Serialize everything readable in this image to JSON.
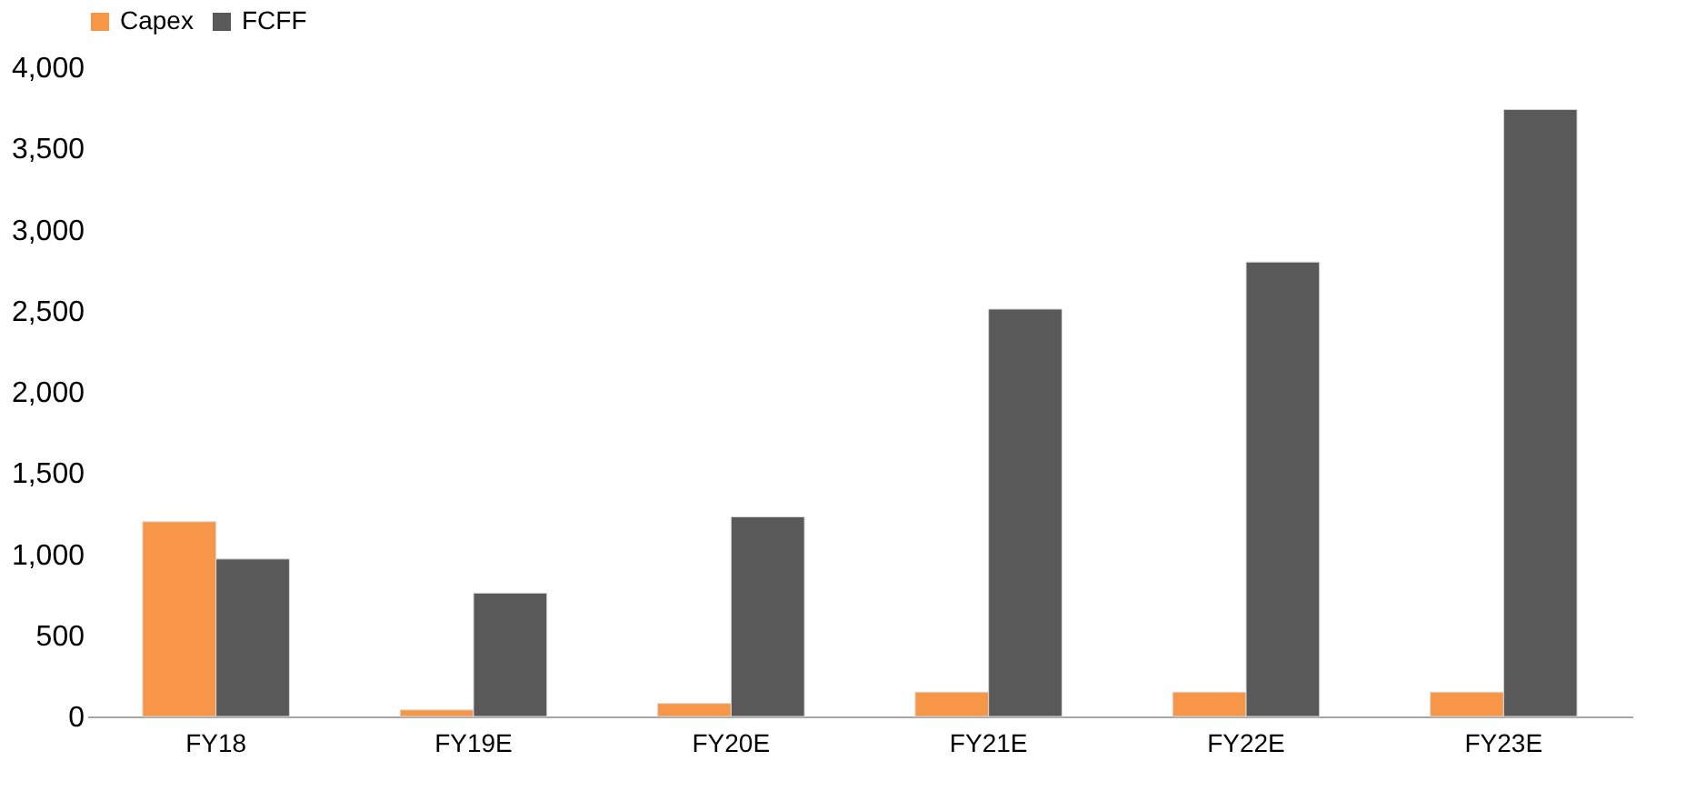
{
  "chart_data": {
    "type": "bar",
    "categories": [
      "FY18",
      "FY19E",
      "FY20E",
      "FY21E",
      "FY22E",
      "FY23E"
    ],
    "series": [
      {
        "name": "Capex",
        "color": "#f79646",
        "values": [
          1200,
          40,
          80,
          150,
          150,
          150
        ]
      },
      {
        "name": "FCFF",
        "color": "#595959",
        "values": [
          970,
          760,
          1230,
          2510,
          2800,
          3740
        ]
      }
    ],
    "ylim": [
      0,
      4000
    ],
    "yticks": [
      {
        "value": 0,
        "label": "0"
      },
      {
        "value": 500,
        "label": "500"
      },
      {
        "value": 1000,
        "label": "1,000"
      },
      {
        "value": 1500,
        "label": "1,500"
      },
      {
        "value": 2000,
        "label": "2,000"
      },
      {
        "value": 2500,
        "label": "2,500"
      },
      {
        "value": 3000,
        "label": "3,000"
      },
      {
        "value": 3500,
        "label": "3,500"
      },
      {
        "value": 4000,
        "label": "4,000"
      }
    ],
    "grid": false,
    "legend": "top"
  }
}
